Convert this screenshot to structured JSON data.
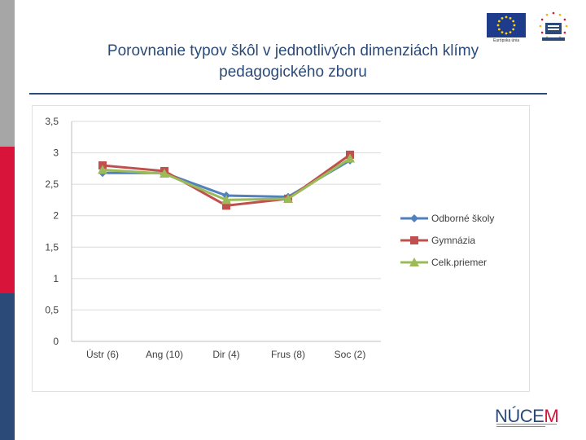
{
  "slide": {
    "title_line1": "Porovnanie typov škôl v jednotlivých dimenziách klímy",
    "title_line2": "pedagogického zboru",
    "eu_caption": "Európska únia",
    "nucem_text_main": "NÚCE",
    "nucem_text_accent": "M",
    "accent_colors": {
      "gray": "#a6a6a6",
      "red": "#d8143a",
      "blue": "#2b4a78"
    }
  },
  "chart_data": {
    "type": "line",
    "title": "",
    "xlabel": "",
    "ylabel": "",
    "categories": [
      "Ústr (6)",
      "Ang (10)",
      "Dir (4)",
      "Frus (8)",
      "Soc (2)"
    ],
    "ylim": [
      0,
      3.5
    ],
    "yticks": [
      "0",
      "0,5",
      "1",
      "1,5",
      "2",
      "2,5",
      "3",
      "3,5"
    ],
    "grid": true,
    "legend_position": "right",
    "series": [
      {
        "name": "Odborné školy",
        "values": [
          2.68,
          2.68,
          2.32,
          2.3,
          2.88
        ],
        "color": "#4f81bd",
        "marker": "diamond"
      },
      {
        "name": "Gymnázia",
        "values": [
          2.8,
          2.71,
          2.16,
          2.27,
          2.97
        ],
        "color": "#c0504d",
        "marker": "square"
      },
      {
        "name": "Celk.priemer",
        "values": [
          2.73,
          2.67,
          2.25,
          2.27,
          2.91
        ],
        "color": "#9bbb59",
        "marker": "triangle"
      }
    ]
  }
}
